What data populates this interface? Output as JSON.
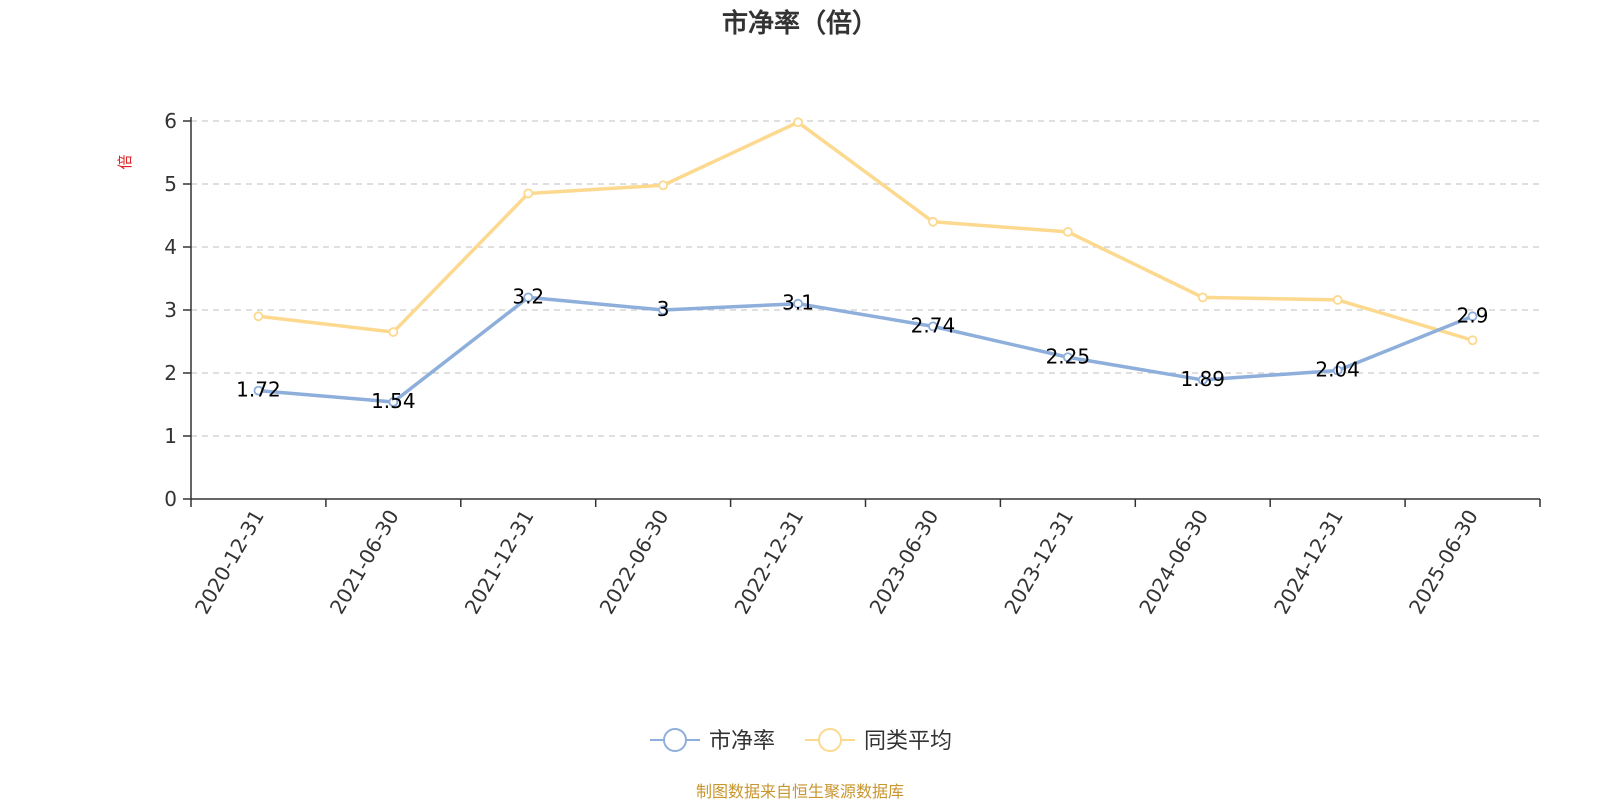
{
  "chart_data": {
    "type": "line",
    "title": "市净率（倍）",
    "ylabel": "倍",
    "ylim": [
      0,
      6
    ],
    "yticks": [
      0,
      1,
      2,
      3,
      4,
      5,
      6
    ],
    "grid": true,
    "legend_position": "bottom-center",
    "categories": [
      "2020-12-31",
      "2021-06-30",
      "2021-12-31",
      "2022-06-30",
      "2022-12-31",
      "2023-06-30",
      "2023-12-31",
      "2024-06-30",
      "2024-12-31",
      "2025-06-30"
    ],
    "series": [
      {
        "name": "市净率",
        "color": "#8eaedb",
        "values": [
          1.72,
          1.54,
          3.2,
          3,
          3.1,
          2.74,
          2.25,
          1.89,
          2.04,
          2.9
        ],
        "labels": [
          "1.72",
          "1.54",
          "3.2",
          "3",
          "3.1",
          "2.74",
          "2.25",
          "1.89",
          "2.04",
          "2.9"
        ],
        "show_labels": true
      },
      {
        "name": "同类平均",
        "color": "#fcd98f",
        "values": [
          2.9,
          2.65,
          4.85,
          4.98,
          5.98,
          4.4,
          4.24,
          3.2,
          3.16,
          2.52
        ],
        "show_labels": false
      }
    ],
    "source_note": "制图数据来自恒生聚源数据库",
    "source_note_color": "#c8962f",
    "ylabel_color": "#e02020"
  }
}
